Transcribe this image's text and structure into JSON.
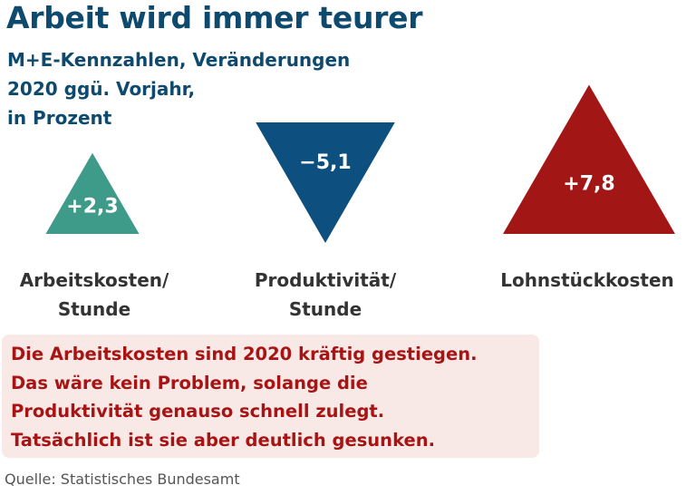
{
  "title": "Arbeit wird immer teurer",
  "subtitle": [
    "M+E-Kennzahlen, Veränderungen",
    "2020 ggü. Vorjahr,",
    "in Prozent"
  ],
  "chart_data": {
    "type": "triangle-indicators",
    "unit": "Prozent",
    "items": [
      {
        "label_lines": [
          "Arbeitskosten/",
          "Stunde"
        ],
        "value": 2.3,
        "value_label": "+2,3",
        "direction": "up",
        "color": "#3e9a89"
      },
      {
        "label_lines": [
          "Produktivität/",
          "Stunde"
        ],
        "value": -5.1,
        "value_label": "−5,1",
        "direction": "down",
        "color": "#0d4f7f"
      },
      {
        "label_lines": [
          "Lohnstückkosten"
        ],
        "value": 7.8,
        "value_label": "+7,8",
        "direction": "up",
        "color": "#a21616"
      }
    ]
  },
  "note": [
    "Die Arbeitskosten sind 2020 kräftig gestiegen.",
    "Das wäre kein Problem, solange die",
    "Produktivität genauso schnell zulegt.",
    "Tatsächlich ist sie aber deutlich gesunken."
  ],
  "source": "Quelle: Statistisches Bundesamt"
}
